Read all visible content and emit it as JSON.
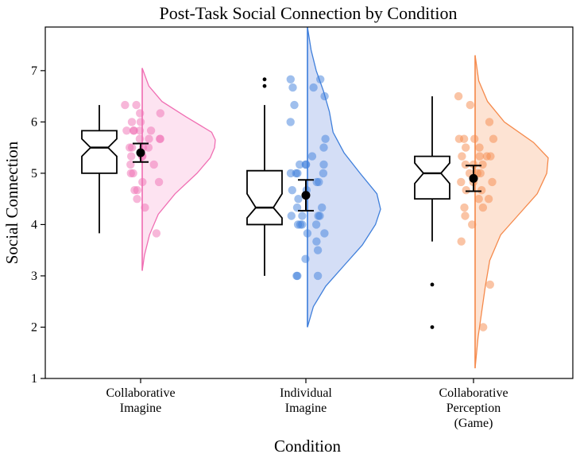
{
  "chart_data": {
    "type": "raincloud",
    "title": "Post-Task Social Connection by Condition",
    "xlabel": "Condition",
    "ylabel": "Social Connection",
    "ylim": [
      1,
      7.85
    ],
    "yticks": [
      1,
      2,
      3,
      4,
      5,
      6,
      7
    ],
    "grid": false,
    "categories": [
      {
        "label_lines": [
          "Collaborative",
          "Imagine"
        ],
        "color": "#f06fb3",
        "fill": "#fde3f1",
        "box": {
          "whisker_low": 3.83,
          "q1": 5.0,
          "median": 5.5,
          "q3": 5.83,
          "whisker_high": 6.33,
          "notch_low": 5.33,
          "notch_high": 5.67
        },
        "outliers": [],
        "mean": 5.4,
        "ci": [
          5.22,
          5.58
        ],
        "points": [
          6.33,
          6.33,
          6.17,
          6.17,
          6.0,
          6.0,
          5.83,
          5.83,
          5.83,
          5.83,
          5.83,
          5.67,
          5.67,
          5.67,
          5.67,
          5.5,
          5.5,
          5.5,
          5.5,
          5.33,
          5.33,
          5.33,
          5.17,
          5.17,
          5.0,
          5.0,
          4.83,
          4.83,
          4.67,
          4.67,
          4.5,
          4.33,
          3.83
        ],
        "density": {
          "y": [
            3.1,
            3.4,
            3.8,
            4.2,
            4.6,
            5.0,
            5.3,
            5.5,
            5.65,
            5.8,
            6.1,
            6.4,
            6.7,
            7.05
          ],
          "w": [
            0,
            0.03,
            0.1,
            0.22,
            0.45,
            0.75,
            0.93,
            0.99,
            1.0,
            0.95,
            0.6,
            0.27,
            0.09,
            0
          ]
        }
      },
      {
        "label_lines": [
          "Individual",
          "Imagine"
        ],
        "color": "#3f7fdb",
        "fill": "#d4def6",
        "box": {
          "whisker_low": 3.0,
          "q1": 4.0,
          "median": 4.33,
          "q3": 5.05,
          "whisker_high": 6.33,
          "notch_low": 4.13,
          "notch_high": 4.6
        },
        "outliers": [
          6.83,
          6.7
        ],
        "mean": 4.57,
        "ci": [
          4.27,
          4.87
        ],
        "points": [
          6.83,
          6.83,
          6.67,
          6.67,
          6.5,
          6.33,
          6.0,
          5.67,
          5.5,
          5.33,
          5.17,
          5.17,
          5.17,
          5.17,
          5.0,
          5.0,
          5.0,
          5.0,
          4.83,
          4.83,
          4.67,
          4.67,
          4.5,
          4.33,
          4.33,
          4.17,
          4.17,
          4.17,
          4.17,
          4.0,
          4.0,
          4.0,
          4.0,
          3.83,
          3.83,
          3.67,
          3.5,
          3.33,
          3.0,
          3.0,
          3.0
        ],
        "density": {
          "y": [
            2.0,
            2.4,
            2.8,
            3.2,
            3.6,
            4.0,
            4.3,
            4.6,
            5.0,
            5.4,
            5.8,
            6.2,
            6.6,
            7.0,
            7.4,
            7.85
          ],
          "w": [
            0,
            0.08,
            0.25,
            0.5,
            0.75,
            0.93,
            1.0,
            0.95,
            0.72,
            0.5,
            0.35,
            0.3,
            0.22,
            0.12,
            0.05,
            0
          ]
        }
      },
      {
        "label_lines": [
          "Collaborative",
          "Perception",
          "(Game)"
        ],
        "color": "#f58a4c",
        "fill": "#fde3d3",
        "box": {
          "whisker_low": 3.67,
          "q1": 4.5,
          "median": 5.0,
          "q3": 5.33,
          "whisker_high": 6.5,
          "notch_low": 4.8,
          "notch_high": 5.2
        },
        "outliers": [
          2.83,
          2.0
        ],
        "mean": 4.9,
        "ci": [
          4.65,
          5.15
        ],
        "points": [
          6.5,
          6.33,
          6.0,
          5.67,
          5.67,
          5.67,
          5.67,
          5.5,
          5.5,
          5.33,
          5.33,
          5.33,
          5.33,
          5.17,
          5.17,
          5.17,
          5.0,
          5.0,
          5.0,
          4.83,
          4.83,
          4.83,
          4.67,
          4.67,
          4.5,
          4.5,
          4.33,
          4.33,
          4.17,
          4.0,
          3.67,
          2.83,
          2.0
        ],
        "density": {
          "y": [
            1.2,
            1.8,
            2.3,
            2.8,
            3.3,
            3.8,
            4.2,
            4.6,
            5.0,
            5.3,
            5.6,
            6.0,
            6.4,
            6.8,
            7.3
          ],
          "w": [
            0,
            0.04,
            0.09,
            0.14,
            0.2,
            0.35,
            0.6,
            0.85,
            0.98,
            1.0,
            0.8,
            0.4,
            0.17,
            0.05,
            0
          ]
        }
      }
    ]
  }
}
